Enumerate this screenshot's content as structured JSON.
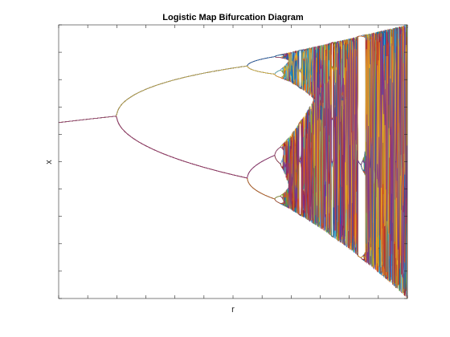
{
  "chart_data": {
    "type": "line",
    "title": "Logistic Map Bifurcation Diagram",
    "xlabel": "r",
    "ylabel": "x",
    "xlim": [
      2.8,
      4.0
    ],
    "ylim": [
      0.0,
      1.0
    ],
    "x_ticks_shown": [
      2.8,
      2.9,
      3.0,
      3.1,
      3.2,
      3.3,
      3.4,
      3.5,
      3.6,
      3.7,
      3.8,
      3.9,
      4.0
    ],
    "y_ticks_shown": [
      0.0,
      0.1,
      0.2,
      0.3,
      0.4,
      0.5,
      0.6,
      0.7,
      0.8,
      0.9,
      1.0
    ],
    "tick_labels_visible": false,
    "grid": false,
    "legend": "none",
    "colors": [
      "#0072BD",
      "#D95319",
      "#EDB120",
      "#7E2F8E",
      "#77AC30",
      "#4DBEEE",
      "#A2142F"
    ],
    "branch_colors": {
      "upper": "#0072BD",
      "lower": "#A2142F",
      "period4_upper": "#4DBEEE",
      "period4_lower": "#77AC30"
    },
    "series_description": "Attractor of x(n+1) = r*x(n)*(1-x(n)), one line per retained iterate",
    "num_series": 60,
    "r_samples": 700
  }
}
